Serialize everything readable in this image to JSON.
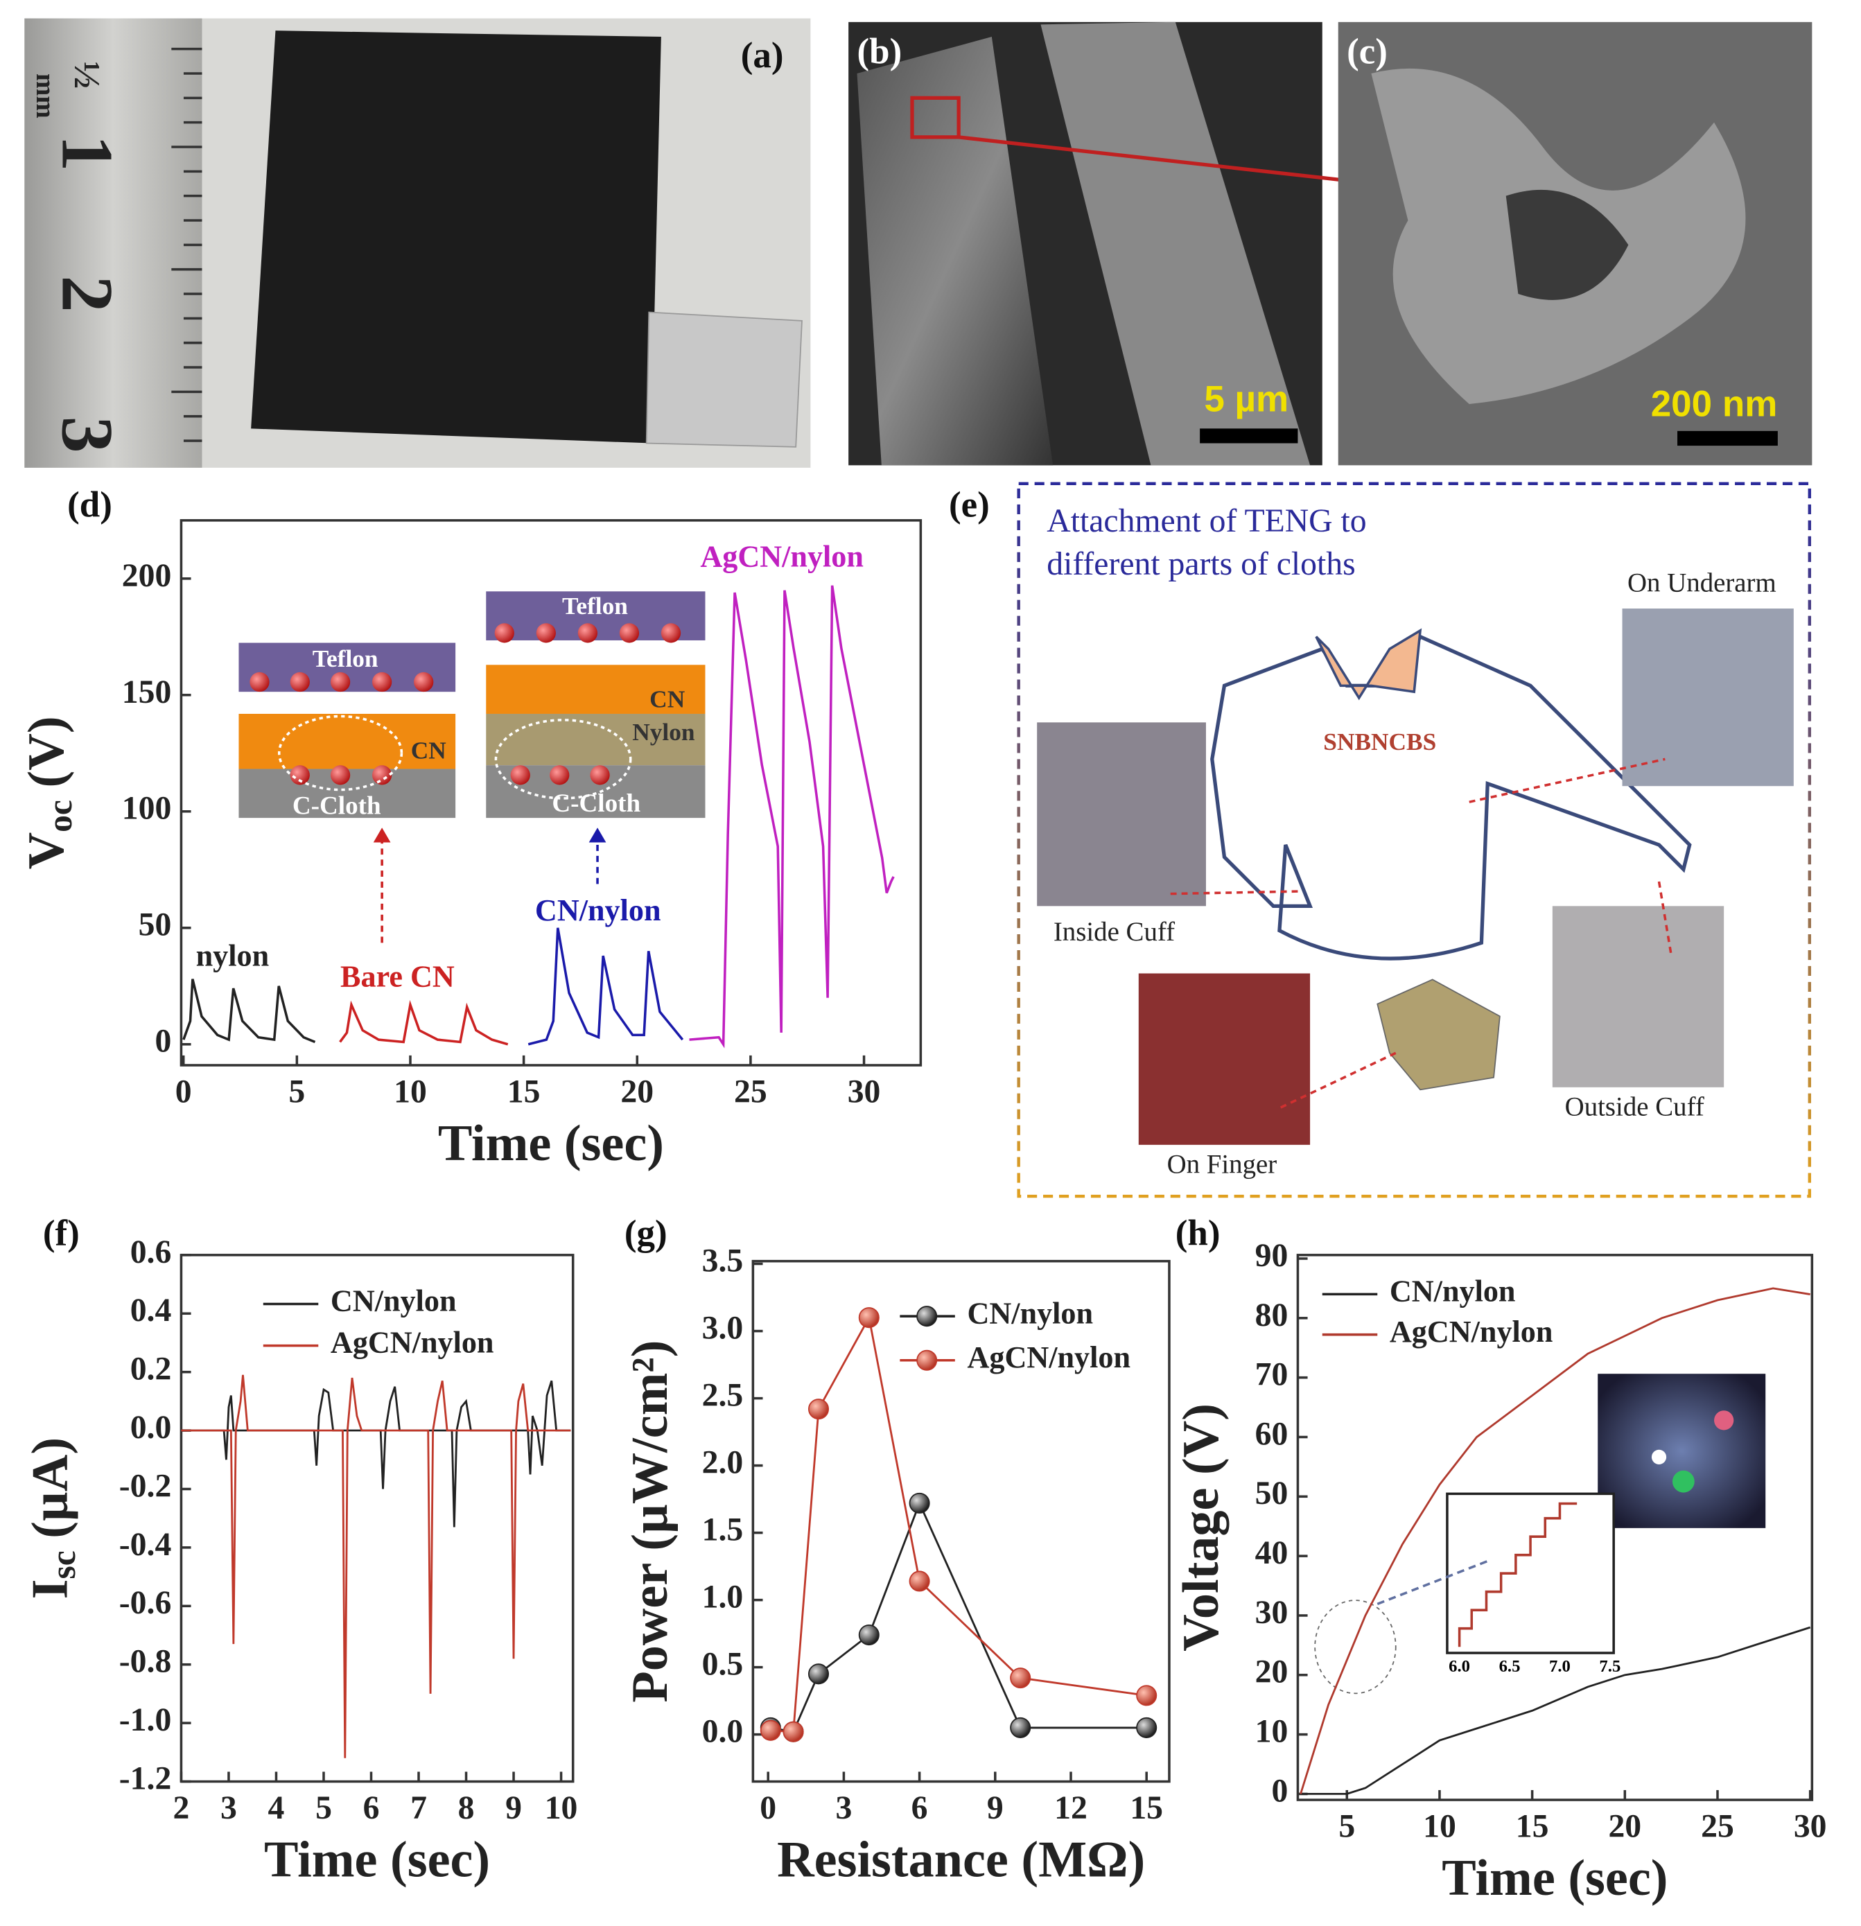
{
  "photos": [
    {
      "label": "(a)",
      "ruler_labels": [
        "mm",
        "½",
        "1",
        "2",
        "3"
      ]
    },
    {
      "label": "(b)",
      "scale_bar": "5 µm"
    },
    {
      "label": "(c)",
      "scale_bar": "200 nm"
    }
  ],
  "diagram": {
    "label": "(e)",
    "title_lines": [
      "Attachment of TENG to",
      "different parts of cloths"
    ],
    "shirt_text": "SNBNCBS",
    "photo_captions": [
      "On Underarm",
      "Inside Cuff",
      "Outside Cuff",
      "On Finger"
    ]
  },
  "chart_data": [
    {
      "type": "line",
      "label": "(d)",
      "xlabel": "Time (sec)",
      "ylabel": {
        "text": "V",
        "sub": "oc",
        "unit": "(V)"
      },
      "xlim": [
        -0.1,
        32.5
      ],
      "ylim": [
        -9,
        225
      ],
      "xticks": [
        0,
        5,
        10,
        15,
        20,
        25,
        30
      ],
      "yticks": [
        0,
        50,
        100,
        150,
        200
      ],
      "inset_texts": [
        [
          "Teflon",
          "CN",
          "C-Cloth"
        ],
        [
          "Teflon",
          "CN",
          "Nylon",
          "C-Cloth"
        ]
      ],
      "series": [
        {
          "name": "nylon",
          "color": "#222222",
          "x": [
            0,
            0.3,
            0.4,
            0.8,
            1.5,
            2.0,
            2.2,
            2.6,
            3.3,
            4.0,
            4.2,
            4.6,
            5.3,
            5.8
          ],
          "values": [
            2,
            10,
            28,
            12,
            4,
            2,
            24,
            10,
            3,
            2,
            25,
            10,
            3,
            1
          ]
        },
        {
          "name": "Bare CN",
          "color": "#cc2222",
          "x": [
            6.9,
            7.2,
            7.4,
            7.9,
            8.6,
            9.7,
            10.0,
            10.4,
            11.2,
            12.2,
            12.5,
            12.9,
            13.6,
            14.3
          ],
          "values": [
            1,
            5,
            17,
            6,
            2,
            1,
            17,
            6,
            2,
            1,
            16,
            6,
            2,
            0
          ]
        },
        {
          "name": "CN/nylon",
          "color": "#1a1aaa",
          "x": [
            15.2,
            16.0,
            16.3,
            16.5,
            17.0,
            17.8,
            18.3,
            18.5,
            19.0,
            19.8,
            20.3,
            20.5,
            21.0,
            22.0
          ],
          "values": [
            0,
            2,
            10,
            50,
            22,
            5,
            3,
            38,
            15,
            4,
            4,
            40,
            14,
            2
          ]
        },
        {
          "name": "AgCN/nylon",
          "color": "#c020c0",
          "x": [
            22.3,
            23.6,
            23.8,
            24.0,
            24.3,
            24.8,
            25.5,
            26.2,
            26.35,
            26.5,
            26.9,
            27.6,
            28.2,
            28.4,
            28.6,
            29.0,
            29.8,
            30.8,
            31.0,
            31.2,
            31.3
          ],
          "values": [
            2,
            3,
            0,
            90,
            194,
            165,
            120,
            85,
            5,
            195,
            170,
            130,
            85,
            20,
            197,
            170,
            130,
            80,
            65,
            70,
            72
          ]
        }
      ]
    },
    {
      "type": "line",
      "label": "(f)",
      "xlabel": "Time (sec)",
      "ylabel": {
        "text": "I",
        "sub": "sc",
        "unit": "(µA)"
      },
      "legend": "upper center",
      "xlim": [
        2,
        10.25
      ],
      "ylim": [
        -1.2,
        0.6
      ],
      "xticks": [
        2,
        3,
        4,
        5,
        6,
        7,
        8,
        9,
        10
      ],
      "yticks": [
        -1.2,
        {
          "value": -1.0,
          "label": "-1.0"
        },
        -0.8,
        -0.6,
        -0.4,
        -0.2,
        {
          "value": 0,
          "label": "0.0"
        },
        0.2,
        0.4,
        0.6
      ],
      "series": [
        {
          "name": "CN/nylon",
          "color": "#222222",
          "x": [
            2,
            2.9,
            2.95,
            3.0,
            3.05,
            3.1,
            3.2,
            4.8,
            4.85,
            4.9,
            5.0,
            5.1,
            5.2,
            5.3,
            6.2,
            6.25,
            6.3,
            6.4,
            6.5,
            6.6,
            7.7,
            7.75,
            7.8,
            7.9,
            8.0,
            8.1,
            9.3,
            9.35,
            9.4,
            9.5,
            9.6,
            9.7,
            9.8,
            9.9,
            10.2
          ],
          "values": [
            0,
            0,
            -0.1,
            0.08,
            0.12,
            0,
            0,
            0,
            -0.12,
            0.05,
            0.14,
            0.13,
            0,
            0,
            0,
            -0.2,
            0,
            0.1,
            0.15,
            0,
            0,
            -0.33,
            0,
            0.08,
            0.1,
            0,
            0,
            -0.15,
            0.05,
            0,
            -0.12,
            0.12,
            0.17,
            0,
            0
          ]
        },
        {
          "name": "AgCN/nylon",
          "color": "#c0392b",
          "x": [
            2,
            3.05,
            3.1,
            3.15,
            3.25,
            3.3,
            3.4,
            5.4,
            5.45,
            5.5,
            5.6,
            5.7,
            5.8,
            7.2,
            7.25,
            7.3,
            7.4,
            7.5,
            7.6,
            8.95,
            9.0,
            9.05,
            9.1,
            9.2,
            9.3,
            10.2
          ],
          "values": [
            0,
            0,
            -0.73,
            0,
            0.1,
            0.19,
            0,
            0,
            -1.12,
            0,
            0.18,
            0.05,
            0,
            0,
            -0.9,
            0,
            0.1,
            0.17,
            0,
            0,
            -0.78,
            0,
            0.1,
            0.16,
            0,
            0
          ]
        }
      ]
    },
    {
      "type": "line",
      "label": "(g)",
      "xlabel": "Resistance (MΩ)",
      "ylabel": "Power (µW/cm²)",
      "legend": "upper right",
      "markers": true,
      "xlim": [
        -0.6,
        15.9
      ],
      "ylim": [
        -0.35,
        3.52
      ],
      "xticks": [
        0,
        3,
        6,
        9,
        12,
        15
      ],
      "yticks": [
        {
          "value": 0,
          "label": "0.0"
        },
        0.5,
        {
          "value": 1,
          "label": "1.0"
        },
        1.5,
        {
          "value": 2,
          "label": "2.0"
        },
        2.5,
        {
          "value": 3,
          "label": "3.0"
        },
        3.5
      ],
      "series": [
        {
          "name": "CN/nylon",
          "color": "#222222",
          "x": [
            0.1,
            1,
            2,
            4,
            6,
            10,
            15
          ],
          "values": [
            0.05,
            0.02,
            0.45,
            0.74,
            1.72,
            0.05,
            0.05
          ]
        },
        {
          "name": "AgCN/nylon",
          "color": "#c0392b",
          "x": [
            0.1,
            1,
            2,
            4,
            6,
            10,
            15
          ],
          "values": [
            0.03,
            0.02,
            2.42,
            3.1,
            1.14,
            0.42,
            0.29
          ]
        }
      ]
    },
    {
      "type": "line",
      "label": "(h)",
      "xlabel": "Time (sec)",
      "ylabel": "Voltage (V)",
      "legend": "upper left",
      "xlim": [
        2.35,
        30.1
      ],
      "ylim": [
        -1,
        90.6
      ],
      "xticks": [
        5,
        10,
        15,
        20,
        25,
        30
      ],
      "yticks": [
        0,
        10,
        20,
        30,
        40,
        50,
        60,
        70,
        80,
        90
      ],
      "inset_ticks": [
        "6.0",
        "6.5",
        "7.0",
        "7.5"
      ],
      "series": [
        {
          "name": "CN/nylon",
          "color": "#222222",
          "x": [
            2.5,
            5,
            6,
            8,
            10,
            12,
            15,
            18,
            20,
            22,
            25,
            28,
            30
          ],
          "values": [
            0,
            0,
            1,
            5,
            9,
            11,
            14,
            18,
            20,
            21,
            23,
            26,
            28
          ]
        },
        {
          "name": "AgCN/nylon",
          "color": "#b03a2e",
          "x": [
            2.5,
            4,
            6,
            8,
            10,
            12,
            15,
            18,
            20,
            22,
            25,
            28,
            30
          ],
          "values": [
            0,
            15,
            30,
            42,
            52,
            60,
            67,
            74,
            77,
            80,
            83,
            85,
            84
          ]
        }
      ]
    }
  ]
}
